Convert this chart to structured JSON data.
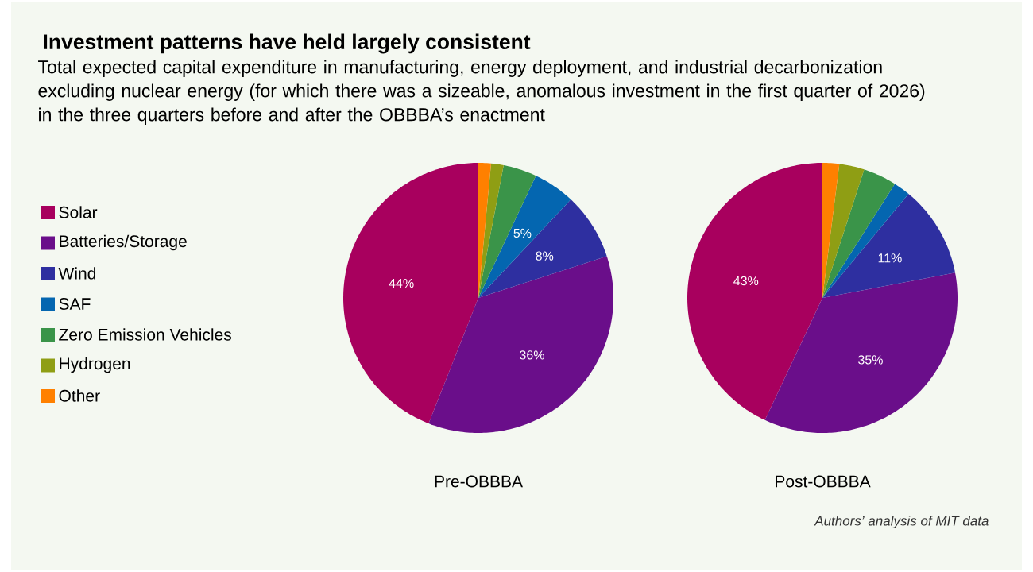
{
  "chart_data": [
    {
      "type": "pie",
      "title": "Investment patterns have held largely consistent",
      "subtitle": "Total expected capital expenditure in manufacturing, energy deployment, and industrial decarbonization excluding nuclear energy (for which there was a sizeable, anomalous investment in the first quarter of 2026) in the three quarters before and after the OBBBA’s enactment",
      "xlabel": "Pre-OBBBA",
      "legend": "left",
      "categories": [
        "Solar",
        "Batteries/Storage",
        "Wind",
        "SAF",
        "Zero Emission Vehicles",
        "Hydrogen",
        "Other"
      ],
      "values": [
        44,
        36,
        8,
        5,
        4,
        1.5,
        1.5
      ],
      "colors": [
        "#a8005e",
        "#6a0e8a",
        "#2e2fa0",
        "#0466b0",
        "#3a9449",
        "#8f9e14",
        "#ff8000"
      ],
      "value_labels": [
        "44%",
        "36%",
        "8%",
        "5%",
        null,
        null,
        null
      ]
    },
    {
      "type": "pie",
      "xlabel": "Post-OBBBA",
      "annotations": [
        "Authors’ analysis of MIT data"
      ],
      "categories": [
        null,
        null,
        null,
        null,
        null,
        null,
        null
      ],
      "values": [
        43,
        35,
        11,
        2,
        4,
        3,
        2
      ],
      "colors": [
        "#a8005e",
        "#6a0e8a",
        "#2e2fa0",
        "#0466b0",
        "#3a9449",
        "#8f9e14",
        "#ff8000"
      ],
      "value_labels": [
        "43%",
        "35%",
        "11%",
        null,
        null,
        null,
        null
      ]
    }
  ]
}
